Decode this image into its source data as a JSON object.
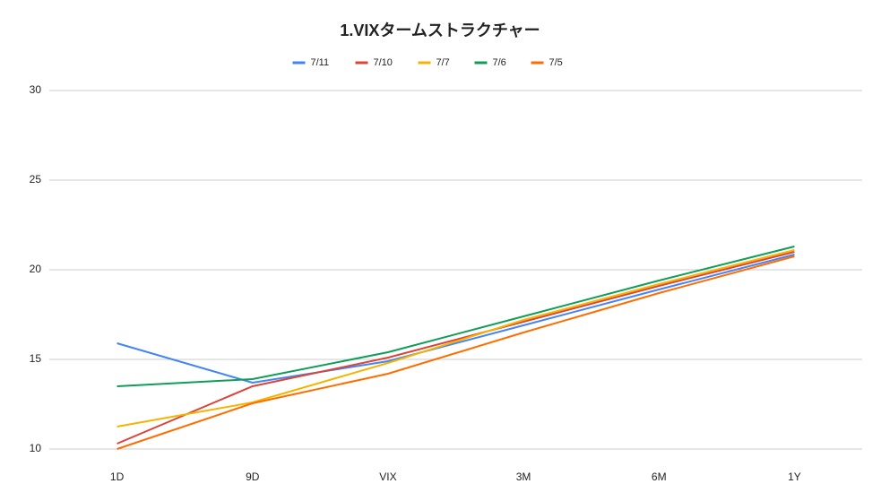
{
  "chart_data": {
    "type": "line",
    "title": "1.VIXタームストラクチャー",
    "categories": [
      "1D",
      "9D",
      "VIX",
      "3M",
      "6M",
      "1Y"
    ],
    "series": [
      {
        "name": "7/11",
        "color": "#4285f4",
        "values": [
          15.9,
          13.7,
          14.9,
          16.9,
          18.9,
          20.85
        ]
      },
      {
        "name": "7/10",
        "color": "#db4437",
        "values": [
          10.3,
          13.5,
          15.1,
          17.1,
          19.1,
          21.0
        ]
      },
      {
        "name": "7/7",
        "color": "#f4b400",
        "values": [
          11.25,
          12.6,
          14.8,
          17.2,
          19.2,
          21.1
        ]
      },
      {
        "name": "7/6",
        "color": "#0f9d58",
        "values": [
          13.5,
          13.9,
          15.4,
          17.4,
          19.4,
          21.3
        ]
      },
      {
        "name": "7/5",
        "color": "#ff6d01",
        "values": [
          10.0,
          12.55,
          14.2,
          16.5,
          18.7,
          20.75
        ]
      }
    ],
    "ylim": [
      10,
      30
    ],
    "yticks": [
      10,
      15,
      20,
      25,
      30
    ],
    "grid": true,
    "legend": "top"
  }
}
